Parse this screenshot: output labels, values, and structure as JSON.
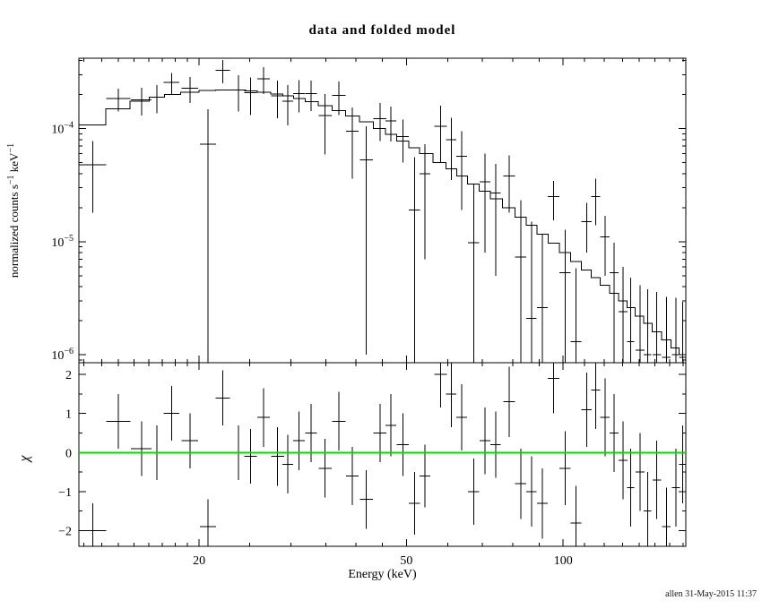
{
  "window": {
    "background": "#ffffff",
    "frame_color": "#000000",
    "data_color": "#000000"
  },
  "chart_data": {
    "type": "line+scatter",
    "title": "data and folded model",
    "xlabel": "Energy (keV)",
    "ylabel_top": "normalized counts s^−1^ keV^−1",
    "ylabel_bottom": "χ",
    "footer": "allen 31-May-2015 11:37",
    "xscale": "log",
    "yscale_top": "log",
    "xlim": [
      11.75,
      172
    ],
    "ylim_top": [
      8.5e-07,
      0.00042
    ],
    "ylim_bottom": [
      -2.4,
      2.3
    ],
    "x_major_ticks": [
      20,
      50,
      100
    ],
    "x_minor_ticks": [
      12,
      13,
      14,
      15,
      16,
      17,
      18,
      19,
      25,
      30,
      35,
      40,
      45,
      60,
      70,
      80,
      90,
      110,
      120,
      130,
      140,
      150,
      160,
      170
    ],
    "y_major_exponents": [
      -4,
      -5,
      -6
    ],
    "chi_major_ticks": [
      -2,
      -1,
      0,
      1,
      2
    ],
    "chi_minor_ticks": [
      -1.5,
      -0.5,
      0.5,
      1.5
    ],
    "zero_line_color": "#00dc00",
    "legend": "none",
    "grid": "off",
    "series": {
      "data": {
        "name": "data",
        "e": [
          12.5,
          14.0,
          15.5,
          16.6,
          17.7,
          19.2,
          20.8,
          22.2,
          23.8,
          25.1,
          26.6,
          28.3,
          29.6,
          31.1,
          32.8,
          34.9,
          37.1,
          39.4,
          41.9,
          44.5,
          46.7,
          49.2,
          51.8,
          54.3,
          58.2,
          61.0,
          63.9,
          67.3,
          70.8,
          74.2,
          78.8,
          82.9,
          86.9,
          91.2,
          95.9,
          100.9,
          105.8,
          110.9,
          115.5,
          120.3,
          125.3,
          130.4,
          134.8,
          140.5,
          145.2,
          151.3,
          157.8,
          164.6,
          169.5
        ],
        "de": [
          0.75,
          0.75,
          0.7,
          0.6,
          0.6,
          0.7,
          0.75,
          0.7,
          0.8,
          0.7,
          0.75,
          0.8,
          0.7,
          0.8,
          0.85,
          1.0,
          1.1,
          1.1,
          1.2,
          1.3,
          1.1,
          1.3,
          1.3,
          1.3,
          1.6,
          1.4,
          1.5,
          1.7,
          1.7,
          1.7,
          2.0,
          2.0,
          2.0,
          2.2,
          2.4,
          2.5,
          2.5,
          2.6,
          2.3,
          2.5,
          2.5,
          2.6,
          2.2,
          2.8,
          2.4,
          2.8,
          2.9,
          3.0,
          2.5
        ],
        "rate": [
          4.8e-05,
          0.000184,
          0.00018,
          0.00019,
          0.000256,
          0.000228,
          7.3e-05,
          0.000328,
          0.000219,
          0.000208,
          0.000276,
          0.000195,
          0.000175,
          0.000204,
          0.000204,
          0.000131,
          0.000197,
          9.5e-05,
          5.3e-05,
          0.000123,
          0.000117,
          8.5e-05,
          1.9e-05,
          4e-05,
          0.000105,
          8e-05,
          5.7e-05,
          9.8e-06,
          3.4e-05,
          2.7e-05,
          3.8e-05,
          7.3e-06,
          2.1e-06,
          2.6e-06,
          2.5e-05,
          5.3e-06,
          1.3e-06,
          1.5e-05,
          2.5e-05,
          1.1e-05,
          5.3e-06,
          2.4e-06,
          1.3e-06,
          1.1e-06,
          1e-06,
          1e-06,
          9.5e-07,
          1e-06,
          9.5e-07
        ],
        "err": [
          3e-05,
          4.2e-05,
          4.9e-05,
          5.3e-05,
          5.6e-05,
          5.9e-05,
          7.6e-05,
          7.7e-05,
          7.7e-05,
          7.6e-05,
          7.4e-05,
          7.1e-05,
          6.8e-05,
          6.5e-05,
          6.1e-05,
          7.2e-05,
          6.5e-05,
          5.9e-05,
          5.2e-05,
          4.5e-05,
          4e-05,
          3.5e-05,
          3.7e-05,
          3.3e-05,
          5.5e-05,
          4.5e-05,
          3.8e-05,
          2.3e-05,
          2.6e-05,
          2.2e-05,
          2e-05,
          1.6e-05,
          1.3e-05,
          9e-06,
          9.5e-06,
          7.5e-06,
          4.5e-06,
          7e-06,
          1.1e-05,
          6e-06,
          4.5e-06,
          3.6e-06,
          3.5e-06,
          3e-06,
          2.8e-06,
          2.6e-06,
          2.3e-06,
          2.2e-06,
          2e-06
        ]
      },
      "model": {
        "name": "folded model",
        "values": [
          0.000108,
          0.00015,
          0.000175,
          0.00019,
          0.0002,
          0.00021,
          0.000218,
          0.00022,
          0.000219,
          0.000216,
          0.00021,
          0.000202,
          0.000195,
          0.000185,
          0.000174,
          0.00016,
          0.000145,
          0.00013,
          0.000115,
          0.0001,
          8.9e-05,
          7.8e-05,
          6.8e-05,
          6e-05,
          5e-05,
          4.4e-05,
          3.8e-05,
          3.25e-05,
          2.8e-05,
          2.4e-05,
          2e-05,
          1.65e-05,
          1.4e-05,
          1.17e-05,
          9.7e-06,
          8e-06,
          6.7e-06,
          5.6e-06,
          4.8e-06,
          4.1e-06,
          3.5e-06,
          3e-06,
          2.6e-06,
          2.2e-06,
          1.9e-06,
          1.6e-06,
          1.35e-06,
          1.15e-06,
          1e-06
        ]
      },
      "residuals": {
        "name": "chi residuals",
        "chi": [
          -2.0,
          0.8,
          0.1,
          0.0,
          1.0,
          0.3,
          -1.9,
          1.4,
          0.0,
          -0.1,
          0.9,
          -0.1,
          -0.3,
          0.3,
          0.5,
          -0.4,
          0.8,
          -0.6,
          -1.2,
          0.5,
          0.7,
          0.2,
          -1.3,
          -0.6,
          2.0,
          1.5,
          0.9,
          -1.0,
          0.3,
          0.2,
          1.3,
          -0.8,
          -1.0,
          -1.3,
          1.9,
          -0.4,
          -1.8,
          1.1,
          1.6,
          0.9,
          0.5,
          -0.2,
          -0.9,
          -0.5,
          -1.5,
          -0.7,
          -1.9,
          -0.9,
          -0.3
        ],
        "dchi": [
          0.7,
          0.7,
          0.7,
          0.7,
          0.7,
          0.7,
          0.7,
          0.7,
          0.7,
          0.7,
          0.75,
          0.75,
          0.75,
          0.75,
          0.75,
          0.75,
          0.75,
          0.75,
          0.75,
          0.75,
          0.8,
          0.8,
          0.8,
          0.8,
          0.85,
          0.85,
          0.85,
          0.85,
          0.85,
          0.85,
          0.9,
          0.9,
          0.9,
          0.9,
          0.9,
          0.95,
          0.95,
          0.95,
          1.0,
          1.0,
          1.0,
          1.0,
          1.0,
          1.0,
          1.0,
          1.0,
          1.0,
          1.0,
          1.0
        ]
      }
    }
  }
}
